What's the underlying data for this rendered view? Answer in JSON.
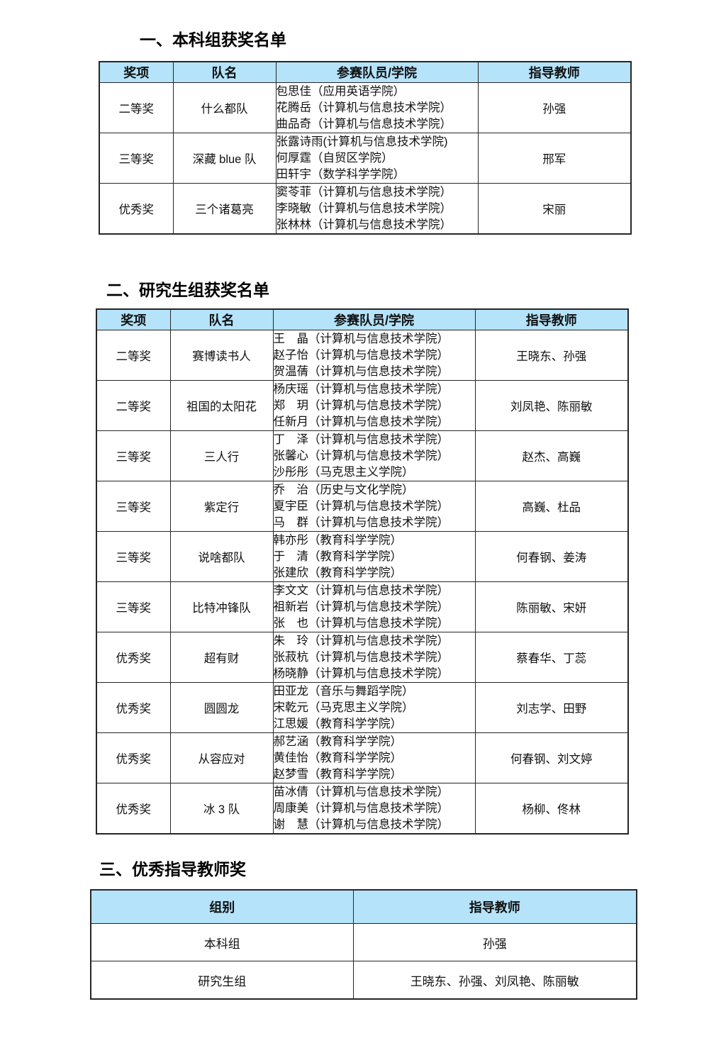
{
  "colors": {
    "header_bg": "#b5e3fa",
    "border": "#262626",
    "text": "#101010"
  },
  "sections": [
    {
      "title": "一、本科组获奖名单",
      "columns": [
        "奖项",
        "队名",
        "参赛队员/学院",
        "指导教师"
      ],
      "rows": [
        {
          "award": "二等奖",
          "team": "什么都队",
          "members": [
            "包思佳（应用英语学院）",
            "花腾岳（计算机与信息技术学院）",
            "曲品奇（计算机与信息技术学院）"
          ],
          "advisors": "孙强"
        },
        {
          "award": "三等奖",
          "team": "深藏 blue 队",
          "members": [
            "张露诗雨(计算机与信息技术学院)",
            "何厚霆（自贸区学院）",
            "田轩宇（数学科学学院）"
          ],
          "advisors": "邢军"
        },
        {
          "award": "优秀奖",
          "team": "三个诸葛亮",
          "members": [
            "窦苓菲（计算机与信息技术学院）",
            "李晓敏（计算机与信息技术学院）",
            "张林林（计算机与信息技术学院）"
          ],
          "advisors": "宋丽"
        }
      ]
    },
    {
      "title": "二、研究生组获奖名单",
      "columns": [
        "奖项",
        "队名",
        "参赛队员/学院",
        "指导教师"
      ],
      "rows": [
        {
          "award": "二等奖",
          "team": "赛博读书人",
          "members": [
            "王　晶（计算机与信息技术学院）",
            "赵子怡（计算机与信息技术学院）",
            "贺温蒨（计算机与信息技术学院）"
          ],
          "advisors": "王晓东、孙强"
        },
        {
          "award": "二等奖",
          "team": "祖国的太阳花",
          "members": [
            "杨庆瑶（计算机与信息技术学院）",
            "郑　玥（计算机与信息技术学院）",
            "任新月（计算机与信息技术学院）"
          ],
          "advisors": "刘凤艳、陈丽敏"
        },
        {
          "award": "三等奖",
          "team": "三人行",
          "members": [
            "丁　泽（计算机与信息技术学院）",
            "张馨心（计算机与信息技术学院）",
            "沙彤彤（马克思主义学院）"
          ],
          "advisors": "赵杰、高巍"
        },
        {
          "award": "三等奖",
          "team": "紫定行",
          "members": [
            "乔　治（历史与文化学院）",
            "夏宇臣（计算机与信息技术学院）",
            "马　群（计算机与信息技术学院）"
          ],
          "advisors": "高巍、杜品"
        },
        {
          "award": "三等奖",
          "team": "说啥都队",
          "members": [
            "韩亦彤（教育科学学院）",
            "于　清（教育科学学院）",
            "张建欣（教育科学学院）"
          ],
          "advisors": "何春钢、姜涛"
        },
        {
          "award": "三等奖",
          "team": "比特冲锋队",
          "members": [
            "李文文（计算机与信息技术学院）",
            "祖新岩（计算机与信息技术学院）",
            "张　也（计算机与信息技术学院）"
          ],
          "advisors": "陈丽敏、宋妍"
        },
        {
          "award": "优秀奖",
          "team": "超有财",
          "members": [
            "朱　玲（计算机与信息技术学院）",
            "张菽杭（计算机与信息技术学院）",
            "杨晓静（计算机与信息技术学院）"
          ],
          "advisors": "蔡春华、丁蕊"
        },
        {
          "award": "优秀奖",
          "team": "圆圆龙",
          "members": [
            "田亚龙（音乐与舞蹈学院）",
            "宋乾元（马克思主义学院）",
            "江思媛（教育科学学院）"
          ],
          "advisors": "刘志学、田野"
        },
        {
          "award": "优秀奖",
          "team": "从容应对",
          "members": [
            "郝艺涵（教育科学学院）",
            "黄佳怡（教育科学学院）",
            "赵梦雪（教育科学学院）"
          ],
          "advisors": "何春钢、刘文婷"
        },
        {
          "award": "优秀奖",
          "team": "冰 3 队",
          "members": [
            "苗冰倩（计算机与信息技术学院）",
            "周康美（计算机与信息技术学院）",
            "谢　慧（计算机与信息技术学院）"
          ],
          "advisors": "杨柳、佟林"
        }
      ]
    },
    {
      "title": "三、优秀指导教师奖",
      "columns": [
        "组别",
        "指导教师"
      ],
      "rows": [
        {
          "group": "本科组",
          "advisors": "孙强"
        },
        {
          "group": "研究生组",
          "advisors": "王晓东、孙强、刘凤艳、陈丽敏"
        }
      ]
    }
  ]
}
